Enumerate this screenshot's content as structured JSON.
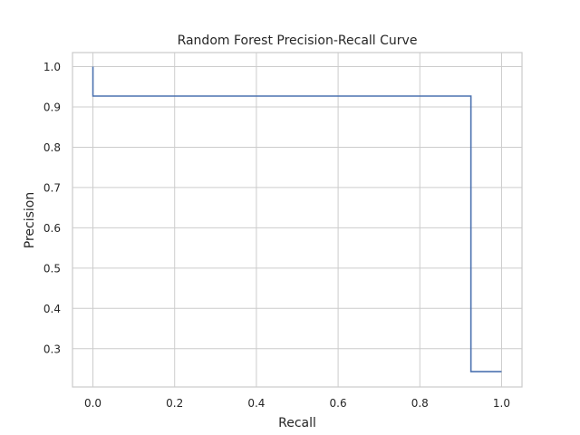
{
  "chart_data": {
    "type": "line",
    "title": "Random Forest Precision-Recall Curve",
    "xlabel": "Recall",
    "ylabel": "Precision",
    "xlim": [
      -0.05,
      1.05
    ],
    "ylim": [
      0.205,
      1.035
    ],
    "xticks": [
      0.0,
      0.2,
      0.4,
      0.6,
      0.8,
      1.0
    ],
    "xtick_labels": [
      "0.0",
      "0.2",
      "0.4",
      "0.6",
      "0.8",
      "1.0"
    ],
    "yticks": [
      0.3,
      0.4,
      0.5,
      0.6,
      0.7,
      0.8,
      0.9,
      1.0
    ],
    "ytick_labels": [
      "0.3",
      "0.4",
      "0.5",
      "0.6",
      "0.7",
      "0.8",
      "0.9",
      "1.0"
    ],
    "grid": true,
    "series": [
      {
        "color": "#4c72b0",
        "drawstyle": "steps",
        "x": [
          0.0,
          0.0,
          0.925,
          0.925,
          1.0
        ],
        "y": [
          1.0,
          0.927,
          0.927,
          0.243,
          0.243
        ]
      }
    ]
  }
}
